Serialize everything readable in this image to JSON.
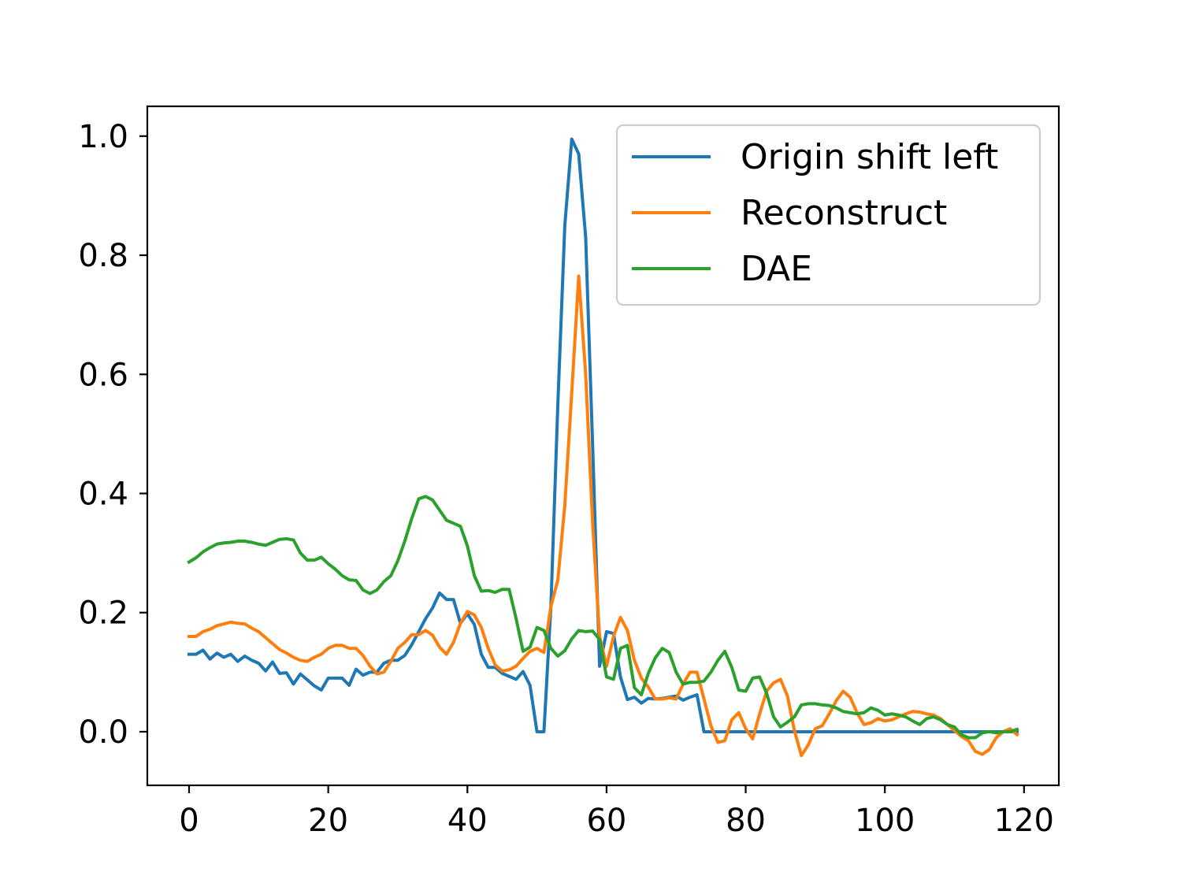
{
  "chart_data": {
    "type": "line",
    "title": "",
    "xlabel": "",
    "ylabel": "",
    "xlim": [
      -6,
      125
    ],
    "ylim": [
      -0.09,
      1.05
    ],
    "xticks": [
      0,
      20,
      40,
      60,
      80,
      100,
      120
    ],
    "yticks": [
      0.0,
      0.2,
      0.4,
      0.6,
      0.8,
      1.0
    ],
    "xtick_labels": [
      "0",
      "20",
      "40",
      "60",
      "80",
      "100",
      "120"
    ],
    "ytick_labels": [
      "0.0",
      "0.2",
      "0.4",
      "0.6",
      "0.8",
      "1.0"
    ],
    "grid": false,
    "legend_position": "top-right",
    "series": [
      {
        "name": "Origin shift left",
        "color": "#1f77b4",
        "x": [
          0,
          1,
          2,
          3,
          4,
          5,
          6,
          7,
          8,
          9,
          10,
          11,
          12,
          13,
          14,
          15,
          16,
          17,
          18,
          19,
          20,
          21,
          22,
          23,
          24,
          25,
          26,
          27,
          28,
          29,
          30,
          31,
          32,
          33,
          34,
          35,
          36,
          37,
          38,
          39,
          40,
          41,
          42,
          43,
          44,
          45,
          46,
          47,
          48,
          49,
          50,
          51,
          52,
          53,
          54,
          55,
          56,
          57,
          58,
          59,
          60,
          61,
          62,
          63,
          64,
          65,
          66,
          67,
          68,
          69,
          70,
          71,
          72,
          73,
          74,
          75,
          76,
          77,
          78,
          79,
          80,
          81,
          82,
          83,
          84,
          85,
          86,
          87,
          88,
          89,
          90,
          91,
          92,
          93,
          94,
          95,
          96,
          97,
          98,
          99,
          100,
          101,
          102,
          103,
          104,
          105,
          106,
          107,
          108,
          109,
          110,
          111,
          112,
          113,
          114,
          115,
          116,
          117,
          118,
          119
        ],
        "y": [
          0.13,
          0.13,
          0.137,
          0.122,
          0.132,
          0.125,
          0.13,
          0.118,
          0.127,
          0.12,
          0.115,
          0.102,
          0.117,
          0.098,
          0.099,
          0.08,
          0.097,
          0.087,
          0.077,
          0.07,
          0.09,
          0.09,
          0.09,
          0.078,
          0.105,
          0.095,
          0.1,
          0.1,
          0.115,
          0.12,
          0.12,
          0.128,
          0.146,
          0.168,
          0.19,
          0.208,
          0.233,
          0.222,
          0.222,
          0.182,
          0.198,
          0.18,
          0.13,
          0.108,
          0.108,
          0.098,
          0.093,
          0.088,
          0.101,
          0.078,
          0.0,
          0.0,
          0.21,
          0.55,
          0.85,
          0.995,
          0.97,
          0.83,
          0.48,
          0.11,
          0.168,
          0.165,
          0.092,
          0.054,
          0.058,
          0.048,
          0.056,
          0.055,
          0.056,
          0.058,
          0.06,
          0.053,
          0.058,
          0.062,
          0.0,
          0.0,
          0.0,
          0.0,
          0.0,
          0.0,
          0.0,
          0.0,
          0.0,
          0.0,
          0.0,
          0.0,
          0.0,
          0.0,
          0.0,
          0.0,
          0.0,
          0.0,
          0.0,
          0.0,
          0.0,
          0.0,
          0.0,
          0.0,
          0.0,
          0.0,
          0.0,
          0.0,
          0.0,
          0.0,
          0.0,
          0.0,
          0.0,
          0.0,
          0.0,
          0.0,
          0.0,
          0.0,
          0.0,
          0.0,
          0.0,
          0.0,
          0.0,
          0.0,
          0.0,
          0.0
        ]
      },
      {
        "name": "Reconstruct",
        "color": "#ff7f0e",
        "x": [
          0,
          1,
          2,
          3,
          4,
          5,
          6,
          7,
          8,
          9,
          10,
          11,
          12,
          13,
          14,
          15,
          16,
          17,
          18,
          19,
          20,
          21,
          22,
          23,
          24,
          25,
          26,
          27,
          28,
          29,
          30,
          31,
          32,
          33,
          34,
          35,
          36,
          37,
          38,
          39,
          40,
          41,
          42,
          43,
          44,
          45,
          46,
          47,
          48,
          49,
          50,
          51,
          52,
          53,
          54,
          55,
          56,
          57,
          58,
          59,
          60,
          61,
          62,
          63,
          64,
          65,
          66,
          67,
          68,
          69,
          70,
          71,
          72,
          73,
          74,
          75,
          76,
          77,
          78,
          79,
          80,
          81,
          82,
          83,
          84,
          85,
          86,
          87,
          88,
          89,
          90,
          91,
          92,
          93,
          94,
          95,
          96,
          97,
          98,
          99,
          100,
          101,
          102,
          103,
          104,
          105,
          106,
          107,
          108,
          109,
          110,
          111,
          112,
          113,
          114,
          115,
          116,
          117,
          118,
          119
        ],
        "y": [
          0.16,
          0.16,
          0.168,
          0.172,
          0.178,
          0.181,
          0.184,
          0.182,
          0.181,
          0.174,
          0.168,
          0.158,
          0.148,
          0.138,
          0.132,
          0.125,
          0.12,
          0.118,
          0.125,
          0.13,
          0.14,
          0.145,
          0.145,
          0.14,
          0.14,
          0.128,
          0.11,
          0.097,
          0.1,
          0.118,
          0.14,
          0.15,
          0.163,
          0.163,
          0.17,
          0.162,
          0.142,
          0.13,
          0.15,
          0.182,
          0.202,
          0.196,
          0.175,
          0.14,
          0.112,
          0.102,
          0.104,
          0.11,
          0.123,
          0.135,
          0.14,
          0.133,
          0.21,
          0.255,
          0.38,
          0.57,
          0.765,
          0.6,
          0.35,
          0.16,
          0.11,
          0.16,
          0.192,
          0.17,
          0.12,
          0.09,
          0.075,
          0.055,
          0.055,
          0.057,
          0.055,
          0.08,
          0.1,
          0.1,
          0.055,
          0.01,
          -0.018,
          -0.015,
          0.02,
          0.032,
          0.005,
          -0.012,
          0.03,
          0.068,
          0.082,
          0.088,
          0.06,
          0.002,
          -0.04,
          -0.022,
          0.005,
          0.01,
          0.03,
          0.052,
          0.068,
          0.058,
          0.032,
          0.012,
          0.015,
          0.022,
          0.018,
          0.02,
          0.025,
          0.03,
          0.034,
          0.033,
          0.03,
          0.028,
          0.022,
          0.012,
          0.002,
          -0.008,
          -0.015,
          -0.033,
          -0.038,
          -0.03,
          -0.01,
          0.0,
          0.005,
          -0.005
        ]
      },
      {
        "name": "DAE",
        "color": "#2ca02c",
        "x": [
          0,
          1,
          2,
          3,
          4,
          5,
          6,
          7,
          8,
          9,
          10,
          11,
          12,
          13,
          14,
          15,
          16,
          17,
          18,
          19,
          20,
          21,
          22,
          23,
          24,
          25,
          26,
          27,
          28,
          29,
          30,
          31,
          32,
          33,
          34,
          35,
          36,
          37,
          38,
          39,
          40,
          41,
          42,
          43,
          44,
          45,
          46,
          47,
          48,
          49,
          50,
          51,
          52,
          53,
          54,
          55,
          56,
          57,
          58,
          59,
          60,
          61,
          62,
          63,
          64,
          65,
          66,
          67,
          68,
          69,
          70,
          71,
          72,
          73,
          74,
          75,
          76,
          77,
          78,
          79,
          80,
          81,
          82,
          83,
          84,
          85,
          86,
          87,
          88,
          89,
          90,
          91,
          92,
          93,
          94,
          95,
          96,
          97,
          98,
          99,
          100,
          101,
          102,
          103,
          104,
          105,
          106,
          107,
          108,
          109,
          110,
          111,
          112,
          113,
          114,
          115,
          116,
          117,
          118,
          119
        ],
        "y": [
          0.285,
          0.292,
          0.302,
          0.309,
          0.315,
          0.317,
          0.318,
          0.32,
          0.32,
          0.318,
          0.315,
          0.313,
          0.318,
          0.323,
          0.324,
          0.322,
          0.3,
          0.288,
          0.288,
          0.293,
          0.282,
          0.273,
          0.262,
          0.255,
          0.254,
          0.238,
          0.232,
          0.238,
          0.252,
          0.262,
          0.287,
          0.32,
          0.358,
          0.391,
          0.395,
          0.389,
          0.372,
          0.355,
          0.35,
          0.345,
          0.312,
          0.262,
          0.236,
          0.237,
          0.234,
          0.239,
          0.239,
          0.19,
          0.135,
          0.142,
          0.175,
          0.17,
          0.14,
          0.127,
          0.136,
          0.156,
          0.17,
          0.168,
          0.169,
          0.155,
          0.092,
          0.088,
          0.14,
          0.145,
          0.074,
          0.062,
          0.098,
          0.124,
          0.14,
          0.133,
          0.1,
          0.08,
          0.083,
          0.083,
          0.085,
          0.1,
          0.12,
          0.135,
          0.108,
          0.07,
          0.068,
          0.09,
          0.092,
          0.065,
          0.025,
          0.008,
          0.016,
          0.025,
          0.045,
          0.047,
          0.047,
          0.045,
          0.044,
          0.04,
          0.034,
          0.032,
          0.03,
          0.032,
          0.04,
          0.036,
          0.028,
          0.03,
          0.028,
          0.025,
          0.018,
          0.012,
          0.022,
          0.025,
          0.02,
          0.012,
          0.008,
          -0.005,
          -0.01,
          -0.01,
          -0.002,
          0.0,
          -0.002,
          0.0,
          0.0,
          0.004
        ]
      }
    ]
  }
}
